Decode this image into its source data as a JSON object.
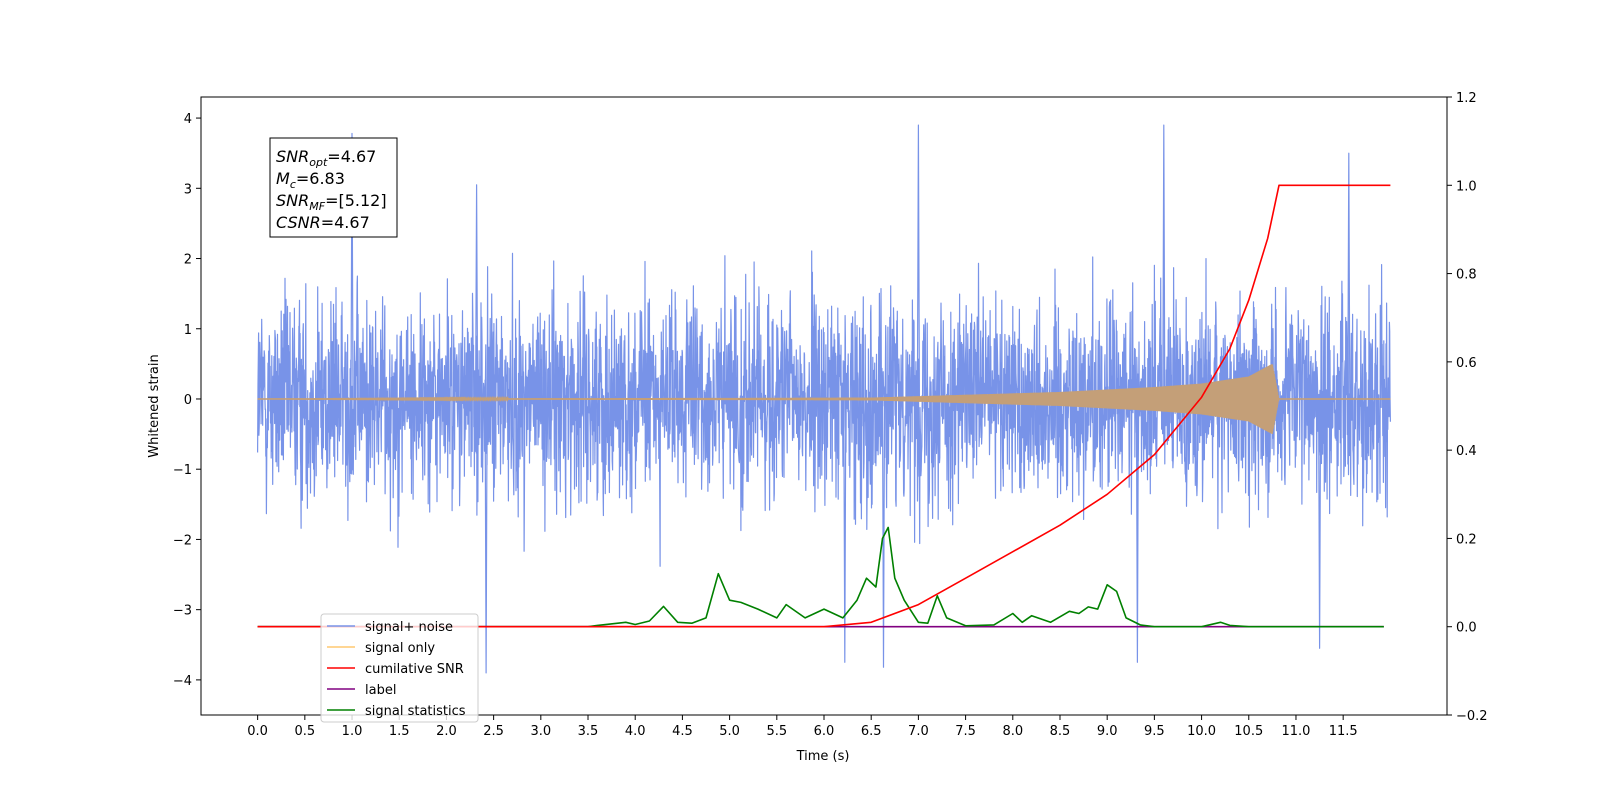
{
  "chart_data": {
    "type": "line",
    "xlabel": "Time (s)",
    "ylabel": "Whitened strain",
    "xlim": [
      -0.6,
      12.6
    ],
    "ylim": [
      -4.5,
      4.3
    ],
    "y2lim": [
      -0.2,
      1.2
    ],
    "x_ticks": [
      "0.0",
      "0.5",
      "1.0",
      "1.5",
      "2.0",
      "2.5",
      "3.0",
      "3.5",
      "4.0",
      "4.5",
      "5.0",
      "5.5",
      "6.0",
      "6.5",
      "7.0",
      "7.5",
      "8.0",
      "8.5",
      "9.0",
      "9.5",
      "10.0",
      "10.5",
      "11.0",
      "11.5"
    ],
    "y_ticks": [
      -4,
      -3,
      -2,
      -1,
      0,
      1,
      2,
      3,
      4
    ],
    "y2_ticks": [
      "−0.2",
      "0.0",
      "0.2",
      "0.4",
      "0.6",
      "0.8",
      "1.0",
      "1.2"
    ],
    "y_tick_labels": [
      "−4",
      "−3",
      "−2",
      "−1",
      "0",
      "1",
      "2",
      "3",
      "4"
    ],
    "grid": false,
    "legend_position": "bottom-left",
    "annotation": {
      "lines": [
        {
          "sym": "SNR",
          "sub": "opt",
          "val": "=4.67"
        },
        {
          "sym": "M",
          "sub": "c",
          "val": "=6.83"
        },
        {
          "sym": "SNR",
          "sub": "MF",
          "val": "=[5.12]"
        },
        {
          "sym": "CSNR",
          "sub": "",
          "val": "=4.67"
        }
      ]
    },
    "series": [
      {
        "name": "signal+ noise",
        "color": "#7893e8",
        "axis": "left",
        "description": "noise band roughly between -2.5 and 2.5 with spikes to about +3.9 and -3.8",
        "x_range": [
          0.0,
          12.0
        ],
        "peak_values": [
          [
            1.0,
            3.78
          ],
          [
            2.32,
            3.05
          ],
          [
            7.0,
            3.9
          ],
          [
            9.6,
            3.9
          ],
          [
            11.56,
            3.5
          ],
          [
            2.42,
            -3.9
          ],
          [
            6.63,
            -3.82
          ],
          [
            6.22,
            -3.75
          ],
          [
            9.32,
            -3.75
          ],
          [
            11.25,
            -3.55
          ]
        ]
      },
      {
        "name": "signal only",
        "color": "#ffc870",
        "axis": "left",
        "description": "chirp growing in amplitude, merger near 10.8 s",
        "points": [
          [
            0,
            0
          ],
          [
            6.5,
            0.02
          ],
          [
            8.5,
            0.1
          ],
          [
            9.5,
            0.17
          ],
          [
            10.0,
            0.22
          ],
          [
            10.5,
            0.32
          ],
          [
            10.75,
            0.5
          ],
          [
            10.82,
            0.0
          ],
          [
            12.0,
            0.0
          ]
        ]
      },
      {
        "name": "cumilative SNR",
        "color": "#ff0000",
        "axis": "right",
        "points": [
          [
            0.0,
            0.0
          ],
          [
            6.0,
            0.0
          ],
          [
            6.5,
            0.01
          ],
          [
            7.0,
            0.05
          ],
          [
            7.5,
            0.11
          ],
          [
            8.0,
            0.17
          ],
          [
            8.5,
            0.23
          ],
          [
            9.0,
            0.3
          ],
          [
            9.5,
            0.39
          ],
          [
            10.0,
            0.52
          ],
          [
            10.3,
            0.63
          ],
          [
            10.5,
            0.74
          ],
          [
            10.7,
            0.88
          ],
          [
            10.82,
            1.0
          ],
          [
            12.0,
            1.0
          ]
        ]
      },
      {
        "name": "label",
        "color": "#800080",
        "axis": "right",
        "points": [
          [
            0.0,
            0.0
          ],
          [
            11.93,
            0.0
          ]
        ]
      },
      {
        "name": "signal statistics",
        "color": "#008000",
        "axis": "right",
        "points": [
          [
            0.0,
            0.0
          ],
          [
            3.0,
            0.0
          ],
          [
            3.5,
            0.0
          ],
          [
            3.6,
            0.003
          ],
          [
            3.9,
            0.01
          ],
          [
            4.0,
            0.005
          ],
          [
            4.15,
            0.013
          ],
          [
            4.3,
            0.046
          ],
          [
            4.45,
            0.01
          ],
          [
            4.6,
            0.008
          ],
          [
            4.75,
            0.02
          ],
          [
            4.88,
            0.12
          ],
          [
            5.0,
            0.06
          ],
          [
            5.12,
            0.055
          ],
          [
            5.3,
            0.04
          ],
          [
            5.5,
            0.02
          ],
          [
            5.6,
            0.05
          ],
          [
            5.8,
            0.02
          ],
          [
            6.0,
            0.04
          ],
          [
            6.2,
            0.02
          ],
          [
            6.35,
            0.06
          ],
          [
            6.45,
            0.11
          ],
          [
            6.55,
            0.09
          ],
          [
            6.62,
            0.2
          ],
          [
            6.68,
            0.225
          ],
          [
            6.75,
            0.11
          ],
          [
            6.85,
            0.06
          ],
          [
            7.0,
            0.01
          ],
          [
            7.1,
            0.008
          ],
          [
            7.2,
            0.07
          ],
          [
            7.3,
            0.02
          ],
          [
            7.5,
            0.002
          ],
          [
            7.8,
            0.004
          ],
          [
            8.0,
            0.03
          ],
          [
            8.1,
            0.01
          ],
          [
            8.2,
            0.025
          ],
          [
            8.4,
            0.01
          ],
          [
            8.6,
            0.035
          ],
          [
            8.7,
            0.03
          ],
          [
            8.8,
            0.045
          ],
          [
            8.9,
            0.04
          ],
          [
            9.0,
            0.095
          ],
          [
            9.1,
            0.08
          ],
          [
            9.2,
            0.02
          ],
          [
            9.35,
            0.004
          ],
          [
            9.5,
            0.0
          ],
          [
            10.0,
            0.0
          ],
          [
            10.2,
            0.01
          ],
          [
            10.3,
            0.003
          ],
          [
            10.5,
            0.0
          ],
          [
            11.93,
            0.0
          ]
        ]
      }
    ]
  }
}
